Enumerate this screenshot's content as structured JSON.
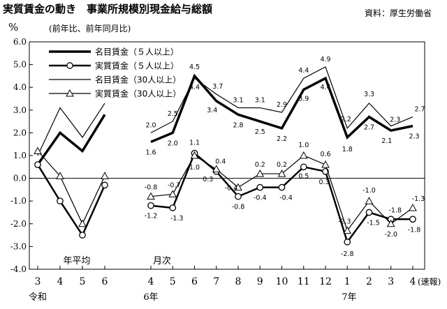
{
  "title": "実質賃金の動き　事業所規模別現金給与総額",
  "source": "資料：厚生労働省",
  "unit_label": "%",
  "note": "(前年比、前年同月比)",
  "chart_data": {
    "type": "line",
    "ylim": [
      -4.0,
      6.0
    ],
    "yticks": [
      "6.0",
      "5.0",
      "4.0",
      "3.0",
      "2.0",
      "1.0",
      "0.0",
      "-1.0",
      "-2.0",
      "-3.0",
      "-4.0"
    ],
    "yticks_values": [
      6,
      5,
      4,
      3,
      2,
      1,
      0,
      -1,
      -2,
      -3,
      -4
    ],
    "annual_x_labels": [
      "3",
      "4",
      "5",
      "6"
    ],
    "monthly_x_labels": [
      "4",
      "5",
      "6",
      "7",
      "8",
      "9",
      "10",
      "11",
      "12",
      "1",
      "2",
      "3",
      "4"
    ],
    "era_labels": {
      "reiwa": "令和",
      "y6": "6年",
      "y7": "7年",
      "prelim": "(速報)"
    },
    "section_labels": {
      "annual": "年平均",
      "monthly": "月次"
    },
    "legend": [
      "名目賃金（５人以上）",
      "実質賃金（５人以上）",
      "名目賃金（30人以上）",
      "実質賃金（30人以上）"
    ],
    "series": [
      {
        "key": "nom5",
        "annual": [
          0.6,
          2.0,
          1.2,
          2.8
        ],
        "monthly": [
          1.6,
          2.0,
          4.5,
          3.4,
          2.8,
          2.5,
          2.2,
          3.9,
          4.4,
          1.8,
          2.7,
          2.1,
          2.3
        ],
        "labels": [
          "1.6",
          "2.0",
          "4.5",
          "3.4",
          "2.8",
          "2.5",
          "2.2",
          "3.9",
          "4.4",
          "1.8",
          "2.7",
          "2.1",
          "2.3"
        ]
      },
      {
        "key": "real5",
        "annual": [
          0.6,
          -1.0,
          -2.5,
          -0.3
        ],
        "monthly": [
          -1.2,
          -1.3,
          1.1,
          0.3,
          -0.8,
          -0.4,
          -0.4,
          0.5,
          0.3,
          -2.8,
          -1.5,
          -1.8,
          -1.8
        ],
        "labels": [
          "-1.2",
          "-1.3",
          "1.1",
          "0.3",
          "-0.8",
          "-0.4",
          "-0.4",
          "0.5",
          "0.3",
          "-2.8",
          "-1.5",
          "-1.8",
          "-1.8"
        ]
      },
      {
        "key": "nom30",
        "annual": [
          1.0,
          3.1,
          1.8,
          3.3
        ],
        "monthly": [
          2.0,
          2.5,
          4.4,
          3.7,
          3.1,
          3.1,
          2.9,
          4.4,
          4.9,
          2.2,
          3.3,
          2.3,
          2.7
        ],
        "labels": [
          "2.0",
          "2.5",
          "4.4",
          "3.7",
          "3.1",
          "3.1",
          "2.9",
          "4.4",
          "4.9",
          "2.2",
          "3.3",
          "2.3",
          "2.7"
        ]
      },
      {
        "key": "real30",
        "annual": [
          1.2,
          0.1,
          -2.0,
          0.1
        ],
        "monthly": [
          -0.8,
          -0.7,
          1.0,
          0.4,
          -0.4,
          0.2,
          0.2,
          1.0,
          0.6,
          -2.3,
          -1.0,
          -2.0,
          -1.3
        ],
        "labels": [
          "-0.8",
          "-0.7",
          "1.0",
          "0.4",
          "-0.4",
          "0.2",
          "0.2",
          "1.0",
          "0.6",
          "-2.3",
          "-1.0",
          "-2.0",
          "-1.3"
        ]
      }
    ]
  }
}
